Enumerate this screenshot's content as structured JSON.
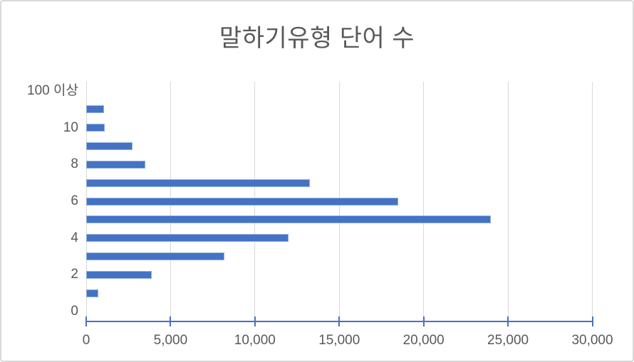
{
  "chart_data": {
    "type": "bar",
    "orientation": "horizontal",
    "title": "말하기유형 단어 수",
    "categories": [
      "100 이상",
      "",
      "10",
      "",
      "8",
      "",
      "6",
      "",
      "4",
      "",
      "2",
      "",
      "0"
    ],
    "values": [
      0,
      1050,
      1100,
      2750,
      3500,
      13250,
      18500,
      24000,
      12000,
      8200,
      3900,
      700,
      0
    ],
    "x_ticks": [
      0,
      5000,
      10000,
      15000,
      20000,
      25000,
      30000
    ],
    "x_tick_labels": [
      "0",
      "5,000",
      "10,000",
      "15,000",
      "20,000",
      "25,000",
      "30,000"
    ],
    "xlim": [
      0,
      30000
    ],
    "ylabel": "",
    "xlabel": "",
    "grid": "vertical-only",
    "legend": "none",
    "colors": {
      "bar": "#4472C4",
      "bar_border": "#8FAEE0",
      "axis_line": "#4472C4",
      "gridline": "#D9D9D9",
      "text": "#595959",
      "frame_border": "#D9D9D9",
      "background": "#FFFFFF"
    }
  }
}
